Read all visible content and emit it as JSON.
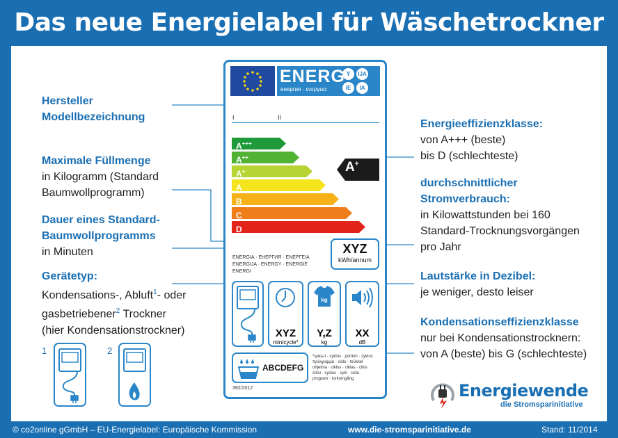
{
  "title": "Das neue Energielabel für Wäschetrockner",
  "left_blocks": {
    "hersteller": {
      "line1": "Hersteller",
      "line2": "Modellbezeichnung"
    },
    "fuellmenge": {
      "heading": "Maximale Füllmenge",
      "line1": "in Kilogramm (Standard",
      "line2": "Baumwollprogramm)"
    },
    "dauer": {
      "heading1": "Dauer eines Standard-",
      "heading2": "Baumwollprogramms",
      "line1": "in Minuten"
    },
    "geraetetyp": {
      "heading": "Gerätetyp:",
      "line1_a": "Kondensations-, Abluft",
      "sup1": "1",
      "line1_b": "- oder",
      "line2_a": "gasbetriebener",
      "sup2": "2",
      "line2_b": " Trockner",
      "line3": "(hier Kondensationstrockner)"
    }
  },
  "right_blocks": {
    "effizienz": {
      "heading": "Energieeffizienzklasse:",
      "line1": "von A+++ (beste)",
      "line2": "bis D (schlechteste)"
    },
    "strom": {
      "heading1": "durchschnittlicher",
      "heading2": "Stromverbrauch:",
      "line1": "in Kilowattstunden bei 160",
      "line2": "Standard-Trocknungsvorgängen",
      "line3": "pro Jahr"
    },
    "laut": {
      "heading": "Lautstärke in Dezibel:",
      "line1": "je weniger, desto leiser"
    },
    "kondens": {
      "heading": "Kondensationseffizienzklasse",
      "line1": "nur bei Kondensationstrocknern:",
      "line2": "von A (beste) bis G (schlechteste)"
    }
  },
  "small_icons": {
    "label1": "1",
    "label2": "2"
  },
  "label": {
    "energ": "ENERG",
    "energ_sub": "енергия · ενεργεια",
    "lang_codes": [
      "Y",
      "IJA",
      "IE",
      "IA"
    ],
    "roman1": "I",
    "roman2": "II",
    "classes": [
      {
        "name": "A",
        "sup": "+++",
        "color": "#1e9a3a"
      },
      {
        "name": "A",
        "sup": "++",
        "color": "#52b234"
      },
      {
        "name": "A",
        "sup": "+",
        "color": "#b7d432"
      },
      {
        "name": "A",
        "sup": "",
        "color": "#f4e51c"
      },
      {
        "name": "B",
        "sup": "",
        "color": "#f7b21a"
      },
      {
        "name": "C",
        "sup": "",
        "color": "#ef7d1a"
      },
      {
        "name": "D",
        "sup": "",
        "color": "#e2231a"
      }
    ],
    "current_class": "A",
    "current_sup": "+",
    "kwh_value": "XYZ",
    "kwh_unit": "kWh/annum",
    "energia_text": [
      "ENERGIA · ЕНЕРГИЯ · ΕΝΕΡΓΕΙΑ",
      "ENERGIJA · ENERGY · ENERGIE",
      "ENERGI"
    ],
    "time_value": "XYZ",
    "time_unit": "min/cycle*",
    "load_value": "Y,Z",
    "load_unit": "kg",
    "noise_value": "XX",
    "noise_unit": "dB",
    "kg_icon_text": "kg",
    "cond_scale": "ABCDEFG",
    "footnote": [
      "*цикъл · cyklus · portion · zyklus",
      "πρόγραμμα · ciclo · tsükkel",
      "ohjelma · ciklus · ciklas · cikls",
      "ċiklu · cyclus · cykl · ciclu",
      "program · torkomgång"
    ],
    "regulation": "392/2012"
  },
  "brand": {
    "name": "Energiewende",
    "tagline": "die Stromsparinitiative"
  },
  "footer": {
    "left": "© co2online gGmbH – EU-Energielabel: Europäische Kommission",
    "center": "www.die-stromsparinitiative.de",
    "right": "Stand: 11/2014"
  }
}
